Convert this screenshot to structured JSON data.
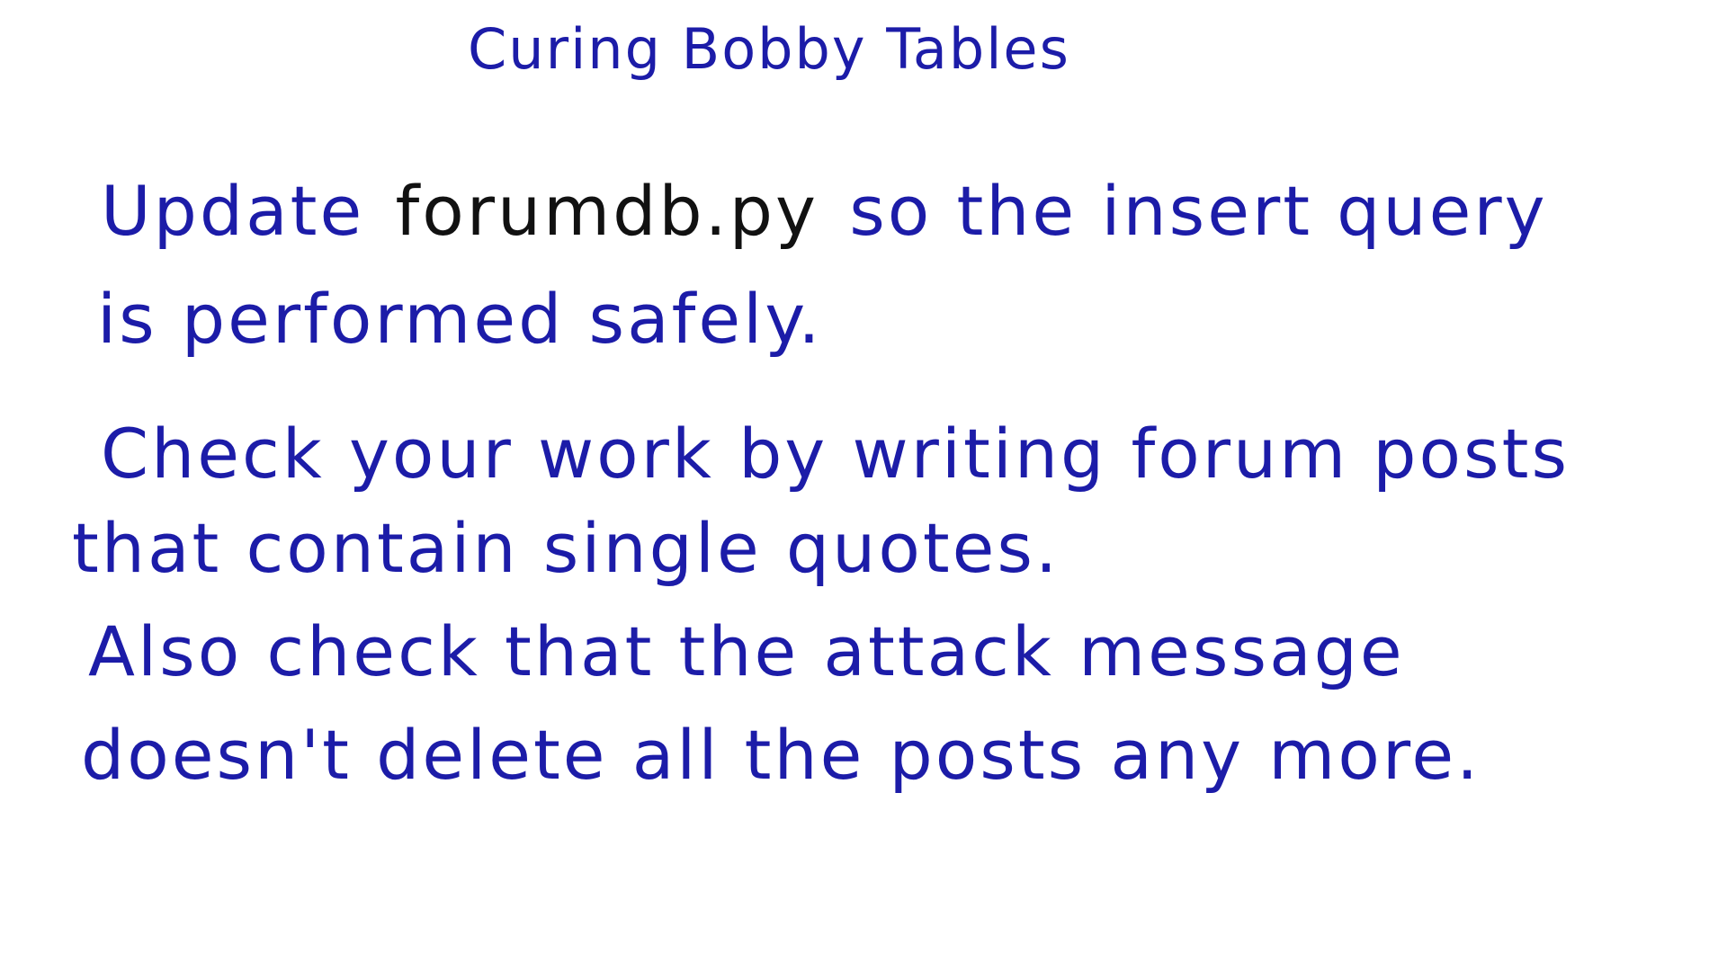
{
  "title": "Curing Bobby Tables",
  "paragraphs": [
    {
      "lines": [
        {
          "segments": [
            "Update",
            "forumdb.py",
            "so the insert query"
          ]
        },
        {
          "segments": [
            "is performed safely."
          ]
        }
      ]
    },
    {
      "lines": [
        {
          "segments": [
            "Check your work by writing forum posts"
          ]
        },
        {
          "segments": [
            "that contain single quotes."
          ]
        }
      ]
    },
    {
      "lines": [
        {
          "segments": [
            "Also check that the attack message"
          ]
        },
        {
          "segments": [
            "doesn't delete all the posts any more."
          ]
        }
      ]
    }
  ]
}
